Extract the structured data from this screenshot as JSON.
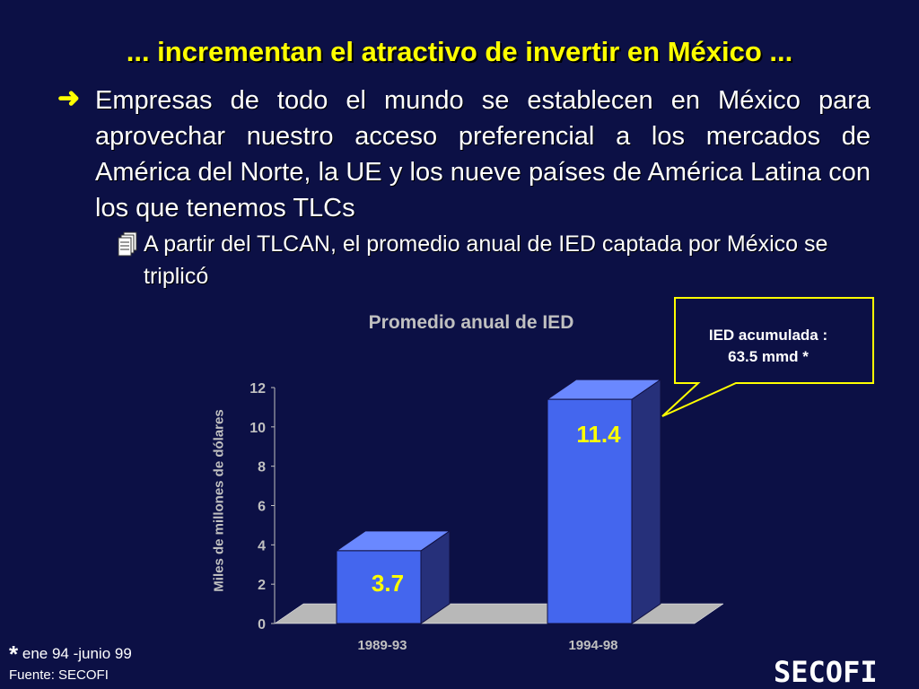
{
  "slide": {
    "title": "... incrementan el atractivo de invertir en México ...",
    "bullet1": "Empresas de todo el mundo se establecen en México para aprovechar nuestro acceso preferencial a los mercados de América del Norte, la UE y los nueve países de América Latina con los que tenemos TLCs",
    "bullet2": "A partir del TLCAN, el promedio anual de IED captada por México se triplicó",
    "callout_line1": "IED acumulada :",
    "callout_line2": "63.5 mmd *",
    "footnote": "ene 94 -junio 99",
    "footnote_marker": "*",
    "source": "Fuente: SECOFI",
    "logo": "SECOFI"
  },
  "icons": {
    "bullet1": "arrow-right-icon",
    "bullet2": "calendar-pages-icon"
  },
  "colors": {
    "background": "#0c1045",
    "title": "#ffff00",
    "bar_front": "#4466ee",
    "bar_side": "#26307a",
    "bar_top": "#6a88ff",
    "data_label": "#ffff00",
    "callout_border": "#ffff00",
    "axis_text": "#c0c0c0",
    "floor": "#b8b8b8"
  },
  "chart_data": {
    "type": "bar",
    "title": "Promedio anual de IED",
    "ylabel": "Miles de millones de dólares",
    "xlabel": "",
    "categories": [
      "1989-93",
      "1994-98"
    ],
    "values": [
      3.7,
      11.4
    ],
    "data_labels": [
      "3.7",
      "11.4"
    ],
    "ylim": [
      0,
      12
    ],
    "yticks": [
      0,
      2,
      4,
      6,
      8,
      10,
      12
    ],
    "grid": false,
    "style": "3d-column"
  }
}
